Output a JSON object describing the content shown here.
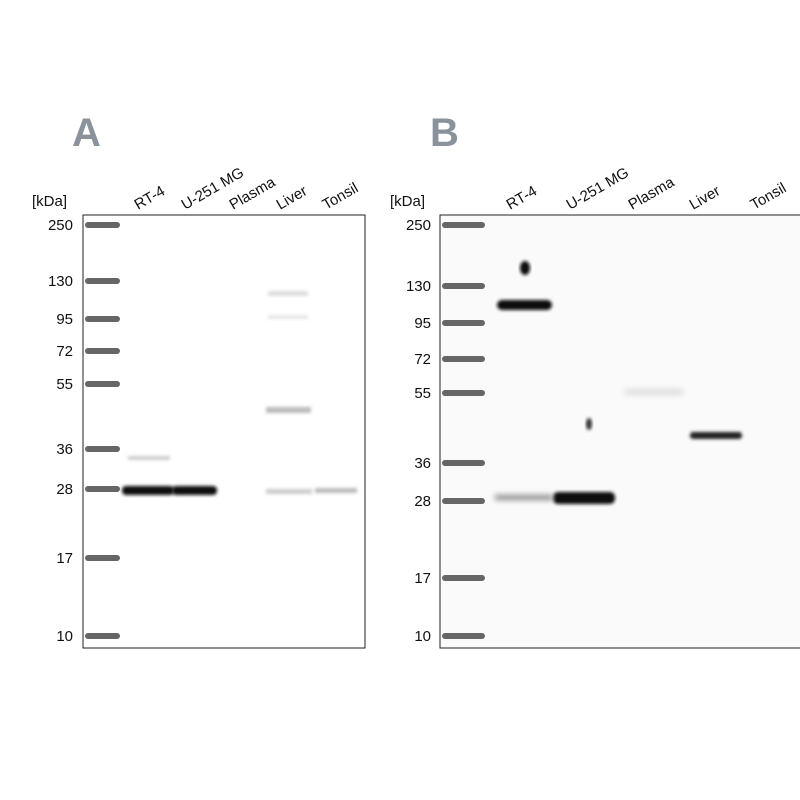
{
  "panels": [
    {
      "label": "A",
      "unit": "[kDa]",
      "lanes": [
        "RT-4",
        "U-251 MG",
        "Plasma",
        "Liver",
        "Tonsil"
      ],
      "markers": [
        "250",
        "130",
        "95",
        "72",
        "55",
        "36",
        "28",
        "17",
        "10"
      ]
    },
    {
      "label": "B",
      "unit": "[kDa]",
      "lanes": [
        "RT-4",
        "U-251 MG",
        "Plasma",
        "Liver",
        "Tonsil"
      ],
      "markers": [
        "250",
        "130",
        "95",
        "72",
        "55",
        "36",
        "28",
        "17",
        "10"
      ]
    }
  ]
}
